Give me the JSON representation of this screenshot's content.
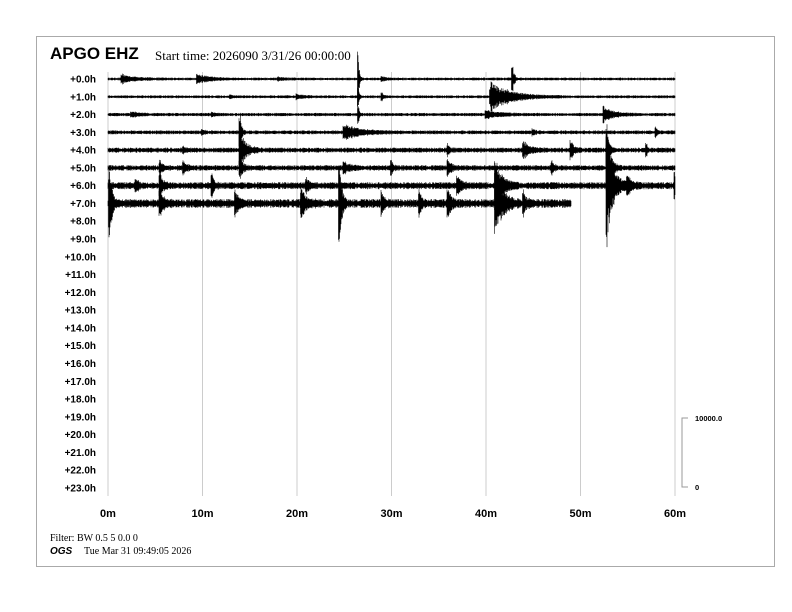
{
  "header": {
    "station": "APGO EHZ",
    "start_time": "Start time: 2026090  3/31/26 00:00:00"
  },
  "footer": {
    "filter": "Filter: BW 0.5 5 0.0 0",
    "org": "OGS",
    "timestamp": "Tue Mar 31 09:49:05 2026"
  },
  "chart_data": {
    "type": "line",
    "row_labels": [
      "+0.0h",
      "+1.0h",
      "+2.0h",
      "+3.0h",
      "+4.0h",
      "+5.0h",
      "+6.0h",
      "+7.0h",
      "+8.0h",
      "+9.0h",
      "+10.0h",
      "+11.0h",
      "+12.0h",
      "+13.0h",
      "+14.0h",
      "+15.0h",
      "+16.0h",
      "+17.0h",
      "+18.0h",
      "+19.0h",
      "+20.0h",
      "+21.0h",
      "+22.0h",
      "+23.0h"
    ],
    "x_ticks": [
      {
        "value": 0,
        "label": "0m"
      },
      {
        "value": 10,
        "label": "10m"
      },
      {
        "value": 20,
        "label": "20m"
      },
      {
        "value": 30,
        "label": "30m"
      },
      {
        "value": 40,
        "label": "40m"
      },
      {
        "value": 50,
        "label": "50m"
      },
      {
        "value": 60,
        "label": "60m"
      }
    ],
    "xlim": [
      0,
      60
    ],
    "scale": {
      "top_label": "10000.0",
      "bottom_label": "0",
      "range": [
        0,
        10000
      ]
    },
    "grid": true,
    "trace_color": "#000000",
    "rows_with_data": [
      {
        "hour": 0,
        "end_min": 60,
        "noise": 150,
        "events": [
          [
            1.5,
            600,
            1.2
          ],
          [
            9.5,
            650,
            1.2
          ],
          [
            26.5,
            4000,
            0.1
          ],
          [
            29,
            300,
            0.4
          ],
          [
            42.8,
            3000,
            0.15
          ],
          [
            18,
            200,
            0.5
          ]
        ]
      },
      {
        "hour": 1,
        "end_min": 60,
        "noise": 150,
        "events": [
          [
            20,
            300,
            0.8
          ],
          [
            29,
            450,
            0.2
          ],
          [
            40.5,
            2100,
            2.0
          ],
          [
            26.5,
            1500,
            0.1
          ],
          [
            13,
            200,
            0.3
          ]
        ]
      },
      {
        "hour": 2,
        "end_min": 60,
        "noise": 170,
        "events": [
          [
            2.5,
            400,
            0.8
          ],
          [
            26.5,
            1500,
            0.1
          ],
          [
            40,
            500,
            1.5
          ],
          [
            52.5,
            1100,
            1.0
          ],
          [
            11,
            250,
            0.3
          ]
        ]
      },
      {
        "hour": 3,
        "end_min": 60,
        "noise": 200,
        "events": [
          [
            14,
            2800,
            0.15
          ],
          [
            25,
            1100,
            1.5
          ],
          [
            10,
            300,
            0.3
          ],
          [
            58,
            900,
            0.1
          ],
          [
            45,
            400,
            0.2
          ]
        ]
      },
      {
        "hour": 4,
        "end_min": 60,
        "noise": 260,
        "events": [
          [
            14,
            2600,
            0.6
          ],
          [
            44,
            1100,
            0.6
          ],
          [
            49,
            1400,
            0.3
          ],
          [
            52.8,
            4000,
            0.2
          ],
          [
            57,
            900,
            0.1
          ],
          [
            8,
            400,
            0.2
          ],
          [
            36,
            700,
            0.2
          ]
        ]
      },
      {
        "hour": 5,
        "end_min": 60,
        "noise": 280,
        "events": [
          [
            5.5,
            1000,
            0.3
          ],
          [
            8,
            900,
            0.3
          ],
          [
            14,
            1500,
            0.3
          ],
          [
            25,
            700,
            0.6
          ],
          [
            36,
            1200,
            0.3
          ],
          [
            52.8,
            5000,
            0.4
          ],
          [
            47,
            900,
            0.2
          ],
          [
            30,
            800,
            0.2
          ]
        ]
      },
      {
        "hour": 6,
        "end_min": 60,
        "noise": 360,
        "events": [
          [
            3,
            800,
            0.3
          ],
          [
            5.5,
            1800,
            0.3
          ],
          [
            11,
            1800,
            0.2
          ],
          [
            21,
            900,
            0.3
          ],
          [
            41,
            4000,
            0.6
          ],
          [
            52.8,
            8500,
            0.6
          ],
          [
            55,
            1200,
            0.5
          ],
          [
            60,
            1500,
            0.4
          ],
          [
            37,
            1200,
            0.4
          ]
        ]
      },
      {
        "hour": 7,
        "end_min": 49,
        "noise": 450,
        "events": [
          [
            0.2,
            7000,
            0.2
          ],
          [
            5.5,
            1500,
            0.4
          ],
          [
            13.5,
            1700,
            0.3
          ],
          [
            24.5,
            8000,
            0.2
          ],
          [
            20.5,
            1800,
            0.5
          ],
          [
            29,
            1500,
            0.3
          ],
          [
            41,
            5000,
            0.7
          ],
          [
            36,
            2000,
            0.3
          ],
          [
            44,
            1400,
            0.3
          ],
          [
            33,
            2000,
            0.2
          ]
        ]
      }
    ]
  }
}
